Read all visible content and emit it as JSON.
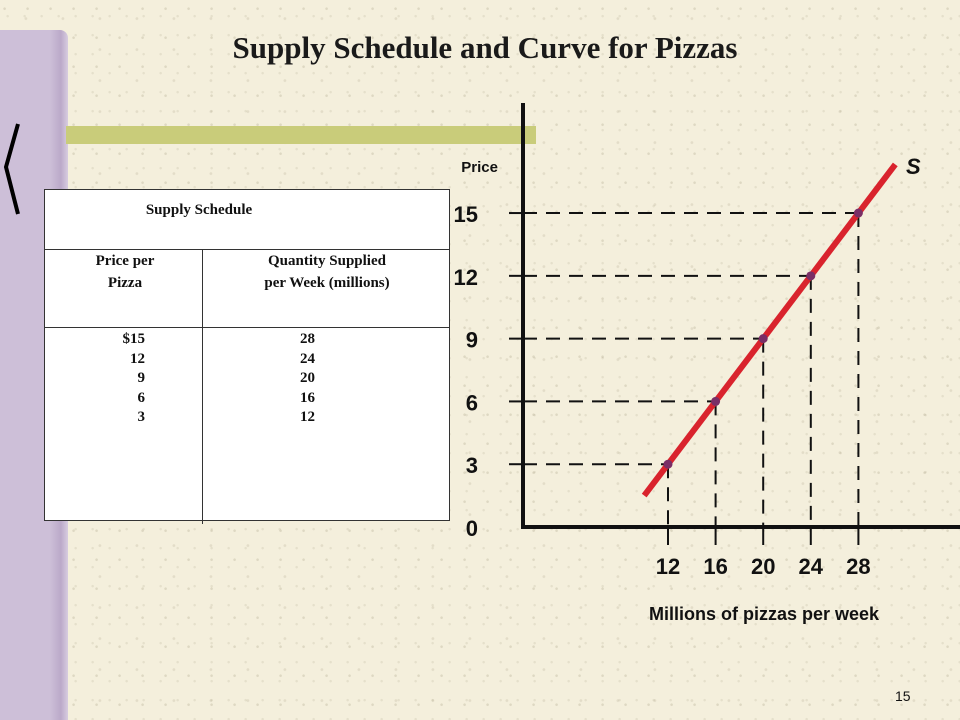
{
  "slide": {
    "title": "Supply Schedule and Curve for Pizzas",
    "page_number": "15"
  },
  "schedule": {
    "title": "Supply Schedule",
    "price_header_line1": "Price  per",
    "price_header_line2": "Pizza",
    "quantity_header_line1": "Quantity Supplied",
    "quantity_header_line2": "per Week (millions)",
    "prices": [
      "$15",
      "12",
      "9",
      "6",
      "3"
    ],
    "quantities": [
      "28",
      "24",
      "20",
      "16",
      "12"
    ]
  },
  "chart_data": {
    "type": "line",
    "ylabel": "Price",
    "xlabel": "Millions of pizzas per week",
    "series": [
      {
        "name": "S",
        "color": "#d9232d",
        "points": [
          {
            "x": 12,
            "y": 3
          },
          {
            "x": 16,
            "y": 6
          },
          {
            "x": 20,
            "y": 9
          },
          {
            "x": 24,
            "y": 12
          },
          {
            "x": 28,
            "y": 15
          }
        ]
      }
    ],
    "y_ticks": [
      0,
      3,
      6,
      9,
      12,
      15
    ],
    "x_ticks": [
      12,
      16,
      20,
      24,
      28
    ],
    "ylim": [
      0,
      15
    ],
    "guide_lines": "dashed",
    "grid": false
  },
  "colors": {
    "curve": "#d9232d",
    "point": "#7a2e66",
    "axis": "#111111"
  }
}
